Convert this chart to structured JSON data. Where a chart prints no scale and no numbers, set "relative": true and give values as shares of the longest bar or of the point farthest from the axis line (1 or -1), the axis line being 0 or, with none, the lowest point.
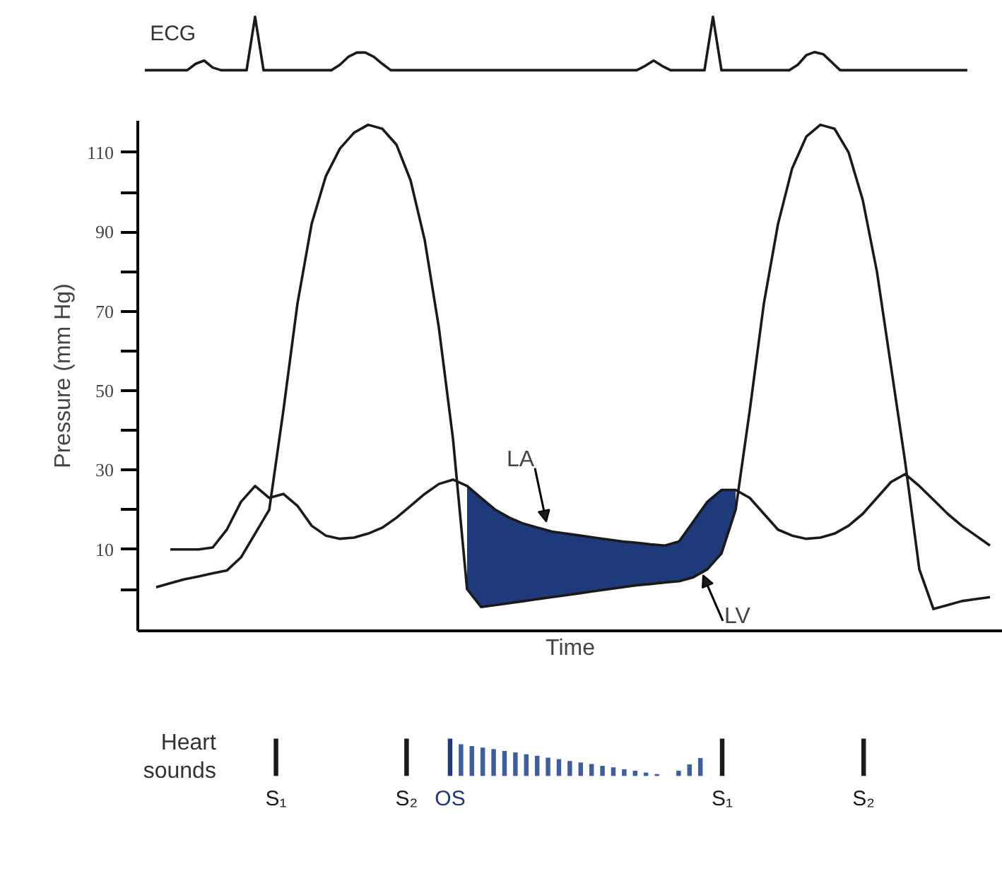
{
  "chart_data": [
    {
      "type": "line",
      "relative": true,
      "annotations": [
        "ECG"
      ],
      "categories": [
        null,
        null,
        null,
        null,
        null,
        null,
        null,
        null,
        null,
        null,
        null,
        null,
        null,
        null,
        null,
        null,
        null,
        null,
        null,
        null,
        null,
        null,
        null,
        null,
        null,
        null,
        null,
        null,
        null,
        null,
        null,
        null,
        null,
        null,
        null,
        null,
        null,
        null,
        null,
        null,
        null,
        null,
        null,
        null,
        null,
        null,
        null,
        null,
        null,
        null,
        null,
        null,
        null,
        null,
        null,
        null,
        null,
        null,
        null,
        null,
        null,
        null,
        null,
        null,
        null,
        null,
        null,
        null,
        null,
        null,
        null,
        null,
        null,
        null,
        null,
        null,
        null,
        null,
        null,
        null,
        null,
        null,
        null,
        null,
        null,
        null,
        null,
        null,
        null,
        null,
        null,
        null,
        null,
        null,
        null,
        null,
        null,
        null
      ],
      "series": [
        {
          "color": "#1a1a1a",
          "values": [
            0,
            0,
            0,
            0,
            0,
            0,
            0.12,
            0.18,
            0.05,
            0,
            0,
            0,
            0,
            1,
            0,
            0,
            0,
            0,
            0,
            0,
            0,
            0,
            0,
            0.1,
            0.25,
            0.33,
            0.33,
            0.25,
            0.12,
            0,
            0,
            0,
            0,
            0,
            0,
            0,
            0,
            0,
            0,
            0,
            0,
            0,
            0,
            0,
            0,
            0,
            0,
            0,
            0,
            0,
            0,
            0,
            0,
            0,
            0,
            0,
            0,
            0,
            0,
            0.08,
            0.18,
            0.08,
            0,
            0,
            0,
            0,
            0,
            1,
            0,
            0,
            0,
            0,
            0,
            0,
            0,
            0,
            0,
            0.1,
            0.28,
            0.34,
            0.3,
            0.15,
            0,
            0,
            0,
            0,
            0,
            0,
            0,
            0,
            0,
            0,
            0,
            0,
            0,
            0,
            0,
            0
          ]
        }
      ]
    },
    {
      "type": "line",
      "xlabel": "Time",
      "ylabel": "Pressure (mm Hg)",
      "ylim": [
        -10.5,
        118
      ],
      "yticks": [
        {
          "value": 0,
          "label": null
        },
        10,
        {
          "value": 20,
          "label": null
        },
        30,
        {
          "value": 40,
          "label": null
        },
        50,
        {
          "value": 60,
          "label": null
        },
        70,
        {
          "value": 80,
          "label": null
        },
        90,
        {
          "value": 100,
          "label": null
        },
        110
      ],
      "categories": [
        null,
        null,
        null,
        null,
        null,
        null,
        null,
        null,
        null,
        null,
        null,
        null,
        null,
        null,
        null,
        null,
        null,
        null,
        null,
        null,
        null,
        null,
        null,
        null,
        null,
        null,
        null,
        null,
        null,
        null,
        null,
        null,
        null,
        null,
        null,
        null,
        null,
        null,
        null,
        null,
        null,
        null,
        null,
        null,
        null,
        null,
        null,
        null,
        null,
        null,
        null,
        null,
        null,
        null,
        null,
        null,
        null,
        null,
        null,
        null
      ],
      "series": [
        {
          "name": "LA",
          "color": "#1a1a1a",
          "values": [
            null,
            10,
            10,
            10,
            10.5,
            15,
            22,
            26,
            23,
            24,
            21,
            16,
            13.5,
            12.7,
            13,
            14,
            15.5,
            18,
            21,
            24,
            26.5,
            27.6,
            26,
            23,
            20,
            18,
            16.5,
            15.5,
            14.5,
            14,
            13.5,
            13,
            12.5,
            12,
            11.7,
            11.3,
            11,
            12,
            17,
            22,
            25,
            25,
            23,
            19,
            15,
            13.5,
            12.7,
            13,
            14,
            16,
            19,
            23,
            27,
            29,
            26,
            22.5,
            19,
            16,
            13.5,
            11
          ],
          "upper": [
            null,
            null,
            null,
            null,
            null,
            null,
            null,
            null,
            null,
            null,
            null,
            null,
            null,
            null,
            null,
            null,
            null,
            null,
            null,
            null,
            null,
            null,
            26,
            23,
            20,
            18,
            16.5,
            15.5,
            14.5,
            14,
            13.5,
            13,
            12.5,
            12,
            11.7,
            11.3,
            11,
            12,
            17,
            22,
            25,
            25,
            null,
            null,
            null,
            null,
            null,
            null,
            null,
            null,
            null,
            null,
            null,
            null,
            null,
            null,
            null,
            null,
            null,
            null
          ],
          "lower": [
            null,
            null,
            null,
            null,
            null,
            null,
            null,
            null,
            null,
            null,
            null,
            null,
            null,
            null,
            null,
            null,
            null,
            null,
            null,
            null,
            null,
            null,
            0,
            -4.5,
            -4,
            -3.5,
            -3,
            -2.5,
            -2,
            -1.5,
            -1,
            -0.5,
            0,
            0.5,
            1,
            1.3,
            1.7,
            2,
            3,
            5,
            9,
            20,
            null,
            null,
            null,
            null,
            null,
            null,
            null,
            null,
            null,
            null,
            null,
            null,
            null,
            null,
            null,
            null,
            null,
            null
          ]
        },
        {
          "name": "LV",
          "color": "#1a1a1a",
          "values": [
            0.5,
            1.5,
            2.5,
            3.2,
            4,
            4.7,
            8,
            14,
            20,
            45,
            72,
            92,
            104,
            111,
            115,
            117,
            116,
            112,
            103,
            88,
            66,
            38,
            0,
            -4.5,
            -4,
            -3.5,
            -3,
            -2.5,
            -2,
            -1.5,
            -1,
            -0.5,
            0,
            0.5,
            1,
            1.3,
            1.7,
            2,
            3,
            5,
            9,
            20,
            45,
            72,
            92,
            106,
            114,
            117,
            116,
            110,
            98,
            80,
            56,
            32,
            5,
            -5,
            -4,
            -3,
            -2.5,
            -2
          ]
        }
      ]
    },
    {
      "type": "bar",
      "relative": true,
      "ylabel": "Heart\nsounds",
      "categories": [
        "S₁",
        null,
        null,
        null,
        null,
        null,
        null,
        null,
        null,
        null,
        null,
        null,
        "S₂",
        null,
        null,
        null,
        "OS",
        null,
        null,
        null,
        null,
        null,
        null,
        null,
        null,
        null,
        null,
        null,
        null,
        null,
        null,
        null,
        null,
        null,
        null,
        null,
        null,
        null,
        null,
        null,
        null,
        "S₁",
        null,
        null,
        null,
        null,
        null,
        null,
        null,
        null,
        null,
        null,
        null,
        null,
        "S₂"
      ],
      "values": [
        1,
        null,
        null,
        null,
        null,
        null,
        null,
        null,
        null,
        null,
        null,
        null,
        1,
        null,
        null,
        null,
        1,
        0.85,
        0.8,
        0.76,
        0.72,
        0.67,
        0.63,
        0.58,
        0.54,
        0.49,
        0.45,
        0.4,
        0.36,
        0.32,
        0.27,
        0.23,
        0.18,
        0.14,
        0.09,
        0.05,
        null,
        0.14,
        0.31,
        0.48,
        null,
        1,
        null,
        null,
        null,
        null,
        null,
        null,
        null,
        null,
        null,
        null,
        null,
        null,
        1
      ],
      "colors": [
        "#1a1a1a",
        "#1a1a1a",
        "#1a1a1a",
        "#1a1a1a",
        "#1a1a1a",
        "#1a1a1a",
        "#1a1a1a",
        "#1a1a1a",
        "#1a1a1a",
        "#1a1a1a",
        "#1a1a1a",
        "#1a1a1a",
        "#1a1a1a",
        "#1a1a1a",
        "#1a1a1a",
        "#1a1a1a",
        "#1f3a7a",
        "#3d5f9e",
        "#3d5f9e",
        "#3d5f9e",
        "#3d5f9e",
        "#3d5f9e",
        "#3d5f9e",
        "#3d5f9e",
        "#3d5f9e",
        "#3d5f9e",
        "#3d5f9e",
        "#3d5f9e",
        "#3d5f9e",
        "#3d5f9e",
        "#3d5f9e",
        "#3d5f9e",
        "#3d5f9e",
        "#3d5f9e",
        "#3d5f9e",
        "#3d5f9e",
        "#3d5f9e",
        "#3d5f9e",
        "#3d5f9e",
        "#3d5f9e",
        "#1a1a1a",
        "#1a1a1a",
        "#1a1a1a",
        "#1a1a1a",
        "#1a1a1a",
        "#1a1a1a",
        "#1a1a1a",
        "#1a1a1a",
        "#1a1a1a",
        "#1a1a1a",
        "#1a1a1a",
        "#1a1a1a",
        "#1a1a1a",
        "#1a1a1a",
        "#1a1a1a"
      ]
    }
  ]
}
